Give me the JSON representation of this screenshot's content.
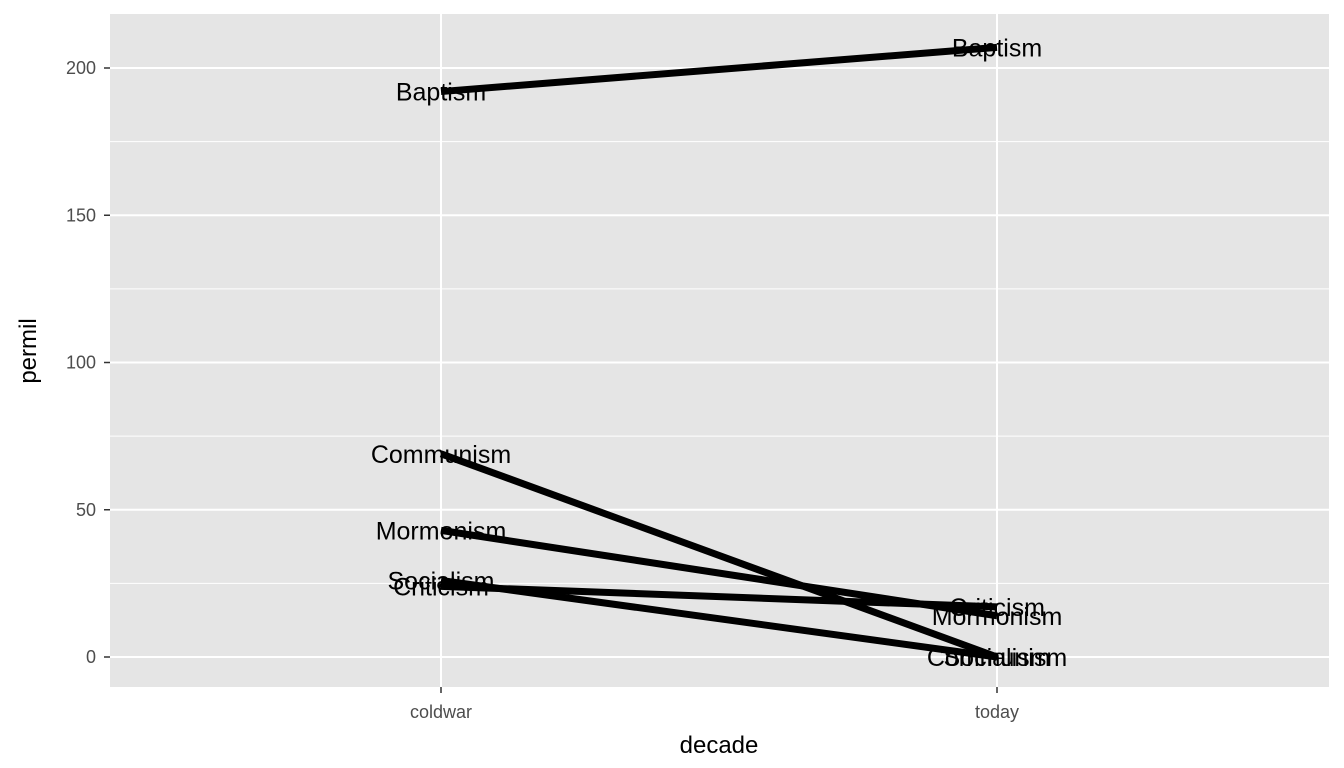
{
  "chart_data": {
    "type": "line",
    "title": "",
    "xlabel": "decade",
    "ylabel": "permil",
    "categories": [
      "coldwar",
      "today"
    ],
    "ylim": [
      -10,
      220
    ],
    "y_ticks": [
      0,
      50,
      100,
      150,
      200
    ],
    "grid": true,
    "legend": "none",
    "series": [
      {
        "name": "Baptism",
        "values": [
          192,
          207
        ]
      },
      {
        "name": "Communism",
        "values": [
          69,
          0
        ]
      },
      {
        "name": "Mormonism",
        "values": [
          43,
          14
        ]
      },
      {
        "name": "Socialism",
        "values": [
          26,
          0
        ]
      },
      {
        "name": "Criticism",
        "values": [
          24,
          17
        ]
      }
    ],
    "colors": {
      "panel": "#e5e5e5",
      "grid": "#ffffff",
      "line": "#000000",
      "tick_text": "#4d4d4d"
    }
  }
}
